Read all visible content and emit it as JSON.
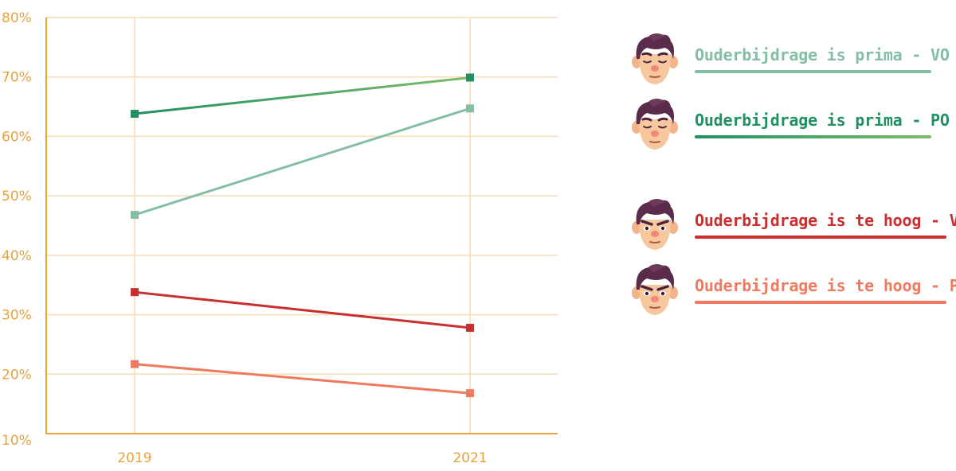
{
  "chart_data": {
    "type": "line",
    "x": [
      "2019",
      "2021"
    ],
    "ylim": [
      10,
      80
    ],
    "yticks": [
      "10%",
      "20%",
      "30%",
      "40%",
      "50%",
      "60%",
      "70%",
      "80%"
    ],
    "grid": true,
    "legend_position": "right",
    "series": [
      {
        "name": "Ouderbijdrage is prima - VO",
        "values": [
          46.8,
          64.7
        ],
        "color": "#84bea4",
        "face": "content"
      },
      {
        "name": "Ouderbijdrage is prima - PO",
        "values": [
          63.8,
          69.9
        ],
        "color": "#229062",
        "color2": "#7bbd6b",
        "face": "content"
      },
      {
        "name": "Ouderbijdrage is te hoog - VO",
        "values": [
          33.8,
          27.8
        ],
        "color": "#c7302f",
        "face": "angry"
      },
      {
        "name": "Ouderbijdrage is te hoog - PO",
        "values": [
          21.7,
          16.8
        ],
        "color": "#ee7b5f",
        "face": "angry"
      }
    ]
  },
  "colors": {
    "grid": "#f7dcb8",
    "axis": "#e8a33c",
    "tick_text": "#e8a33c"
  }
}
